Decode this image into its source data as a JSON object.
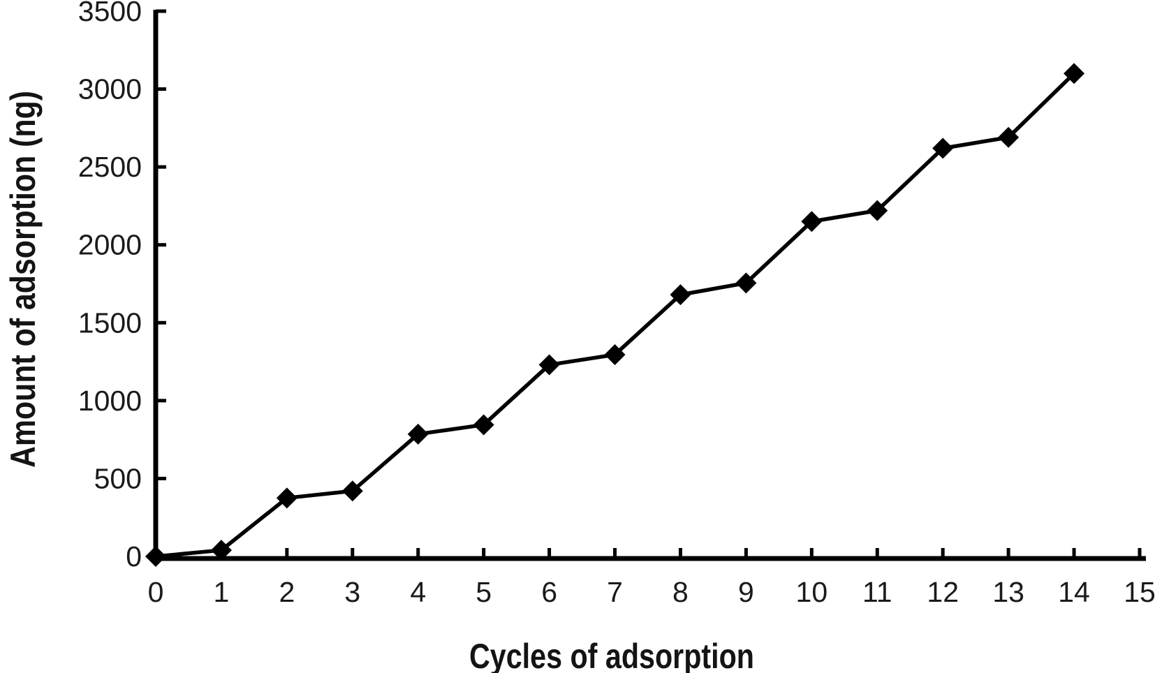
{
  "chart_data": {
    "type": "line",
    "title": "",
    "xlabel": "Cycles of adsorption",
    "ylabel": "Amount of adsorption (ng)",
    "x": [
      0,
      1,
      2,
      3,
      4,
      5,
      6,
      7,
      8,
      9,
      10,
      11,
      12,
      13,
      14
    ],
    "y": [
      0,
      40,
      375,
      420,
      785,
      845,
      1230,
      1295,
      1680,
      1755,
      2150,
      2220,
      2620,
      2690,
      3100
    ],
    "xlim": [
      0,
      15
    ],
    "ylim": [
      0,
      3500
    ],
    "xticks": [
      0,
      1,
      2,
      3,
      4,
      5,
      6,
      7,
      8,
      9,
      10,
      11,
      12,
      13,
      14,
      15
    ],
    "yticks": [
      0,
      500,
      1000,
      1500,
      2000,
      2500,
      3000,
      3500
    ],
    "grid": false,
    "legend": false,
    "marker": "diamond",
    "series_color": "#000000",
    "text_color": "#1a1a1a",
    "background": "#ffffff"
  }
}
